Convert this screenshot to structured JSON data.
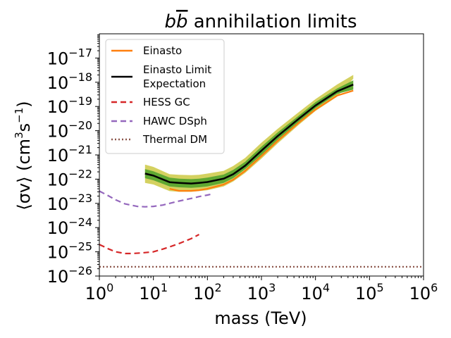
{
  "chart_data": {
    "type": "line",
    "title_main": "b",
    "title_bar": "b",
    "title_rest": " annihilation limits",
    "xlabel": "mass (TeV)",
    "ylabel_parts": {
      "left": "⟨σv⟩ (cm",
      "sup1": "3",
      "mid": "s",
      "sup2": "−1",
      "right": ")"
    },
    "x_scale": "log",
    "y_scale": "log",
    "xlim": [
      1,
      1000000
    ],
    "ylim": [
      1e-26,
      1e-16
    ],
    "x_ticks": [
      {
        "value": 1,
        "mant": "10",
        "exp": "0"
      },
      {
        "value": 10,
        "mant": "10",
        "exp": "1"
      },
      {
        "value": 100,
        "mant": "10",
        "exp": "2"
      },
      {
        "value": 1000,
        "mant": "10",
        "exp": "3"
      },
      {
        "value": 10000,
        "mant": "10",
        "exp": "4"
      },
      {
        "value": 100000,
        "mant": "10",
        "exp": "5"
      },
      {
        "value": 1000000,
        "mant": "10",
        "exp": "6"
      }
    ],
    "y_ticks": [
      {
        "value": 1e-26,
        "mant": "10",
        "exp": "−26"
      },
      {
        "value": 1e-25,
        "mant": "10",
        "exp": "−25"
      },
      {
        "value": 1e-24,
        "mant": "10",
        "exp": "−24"
      },
      {
        "value": 1e-23,
        "mant": "10",
        "exp": "−23"
      },
      {
        "value": 1e-22,
        "mant": "10",
        "exp": "−22"
      },
      {
        "value": 1e-21,
        "mant": "10",
        "exp": "−21"
      },
      {
        "value": 1e-20,
        "mant": "10",
        "exp": "−20"
      },
      {
        "value": 1e-19,
        "mant": "10",
        "exp": "−19"
      },
      {
        "value": 1e-18,
        "mant": "10",
        "exp": "−18"
      },
      {
        "value": 1e-17,
        "mant": "10",
        "exp": "−17"
      }
    ],
    "legend_position": "top-left",
    "bands": [
      {
        "name": "2-sigma",
        "color": "#d4d160",
        "x": [
          7,
          10,
          20,
          30,
          50,
          70,
          100,
          200,
          300,
          500,
          1000,
          2000,
          5000,
          10000,
          25000,
          50000
        ],
        "lower": [
          7e-23,
          6e-23,
          3.2e-23,
          3e-23,
          3e-23,
          3.2e-23,
          3.5e-23,
          5e-23,
          8e-23,
          1.8e-22,
          7e-22,
          3e-21,
          1.8e-20,
          6.5e-20,
          2.5e-19,
          1.4e-18
        ],
        "upper": [
          4e-22,
          3.2e-22,
          1.6e-22,
          1.5e-22,
          1.45e-22,
          1.5e-22,
          1.7e-22,
          2.2e-22,
          3.5e-22,
          7.5e-22,
          3.2e-21,
          1.2e-20,
          6e-20,
          2e-19,
          8e-19,
          2e-18
        ]
      },
      {
        "name": "1-sigma",
        "color": "#5fa832",
        "x": [
          7,
          10,
          20,
          30,
          50,
          70,
          100,
          200,
          300,
          500,
          1000,
          2000,
          5000,
          10000,
          25000,
          50000
        ],
        "lower": [
          1.1e-22,
          9e-23,
          5e-23,
          4.6e-23,
          4.4e-23,
          4.6e-23,
          5e-23,
          7e-23,
          1.1e-22,
          2.6e-22,
          1e-21,
          4.3e-21,
          2.4e-20,
          8.5e-20,
          3.3e-19,
          5e-19
        ],
        "upper": [
          2.6e-22,
          2.1e-22,
          1.15e-22,
          1.05e-22,
          1e-22,
          1.05e-22,
          1.15e-22,
          1.55e-22,
          2.4e-22,
          5.2e-22,
          2.2e-21,
          8.5e-21,
          4.3e-20,
          1.5e-19,
          5.5e-19,
          1.2e-18
        ]
      }
    ],
    "series": [
      {
        "name": "Einasto",
        "color": "#ff7f0e",
        "dash": "",
        "x": [
          20,
          30,
          50,
          70,
          100,
          200,
          300,
          500,
          1000,
          2000,
          5000,
          10000,
          25000,
          50000
        ],
        "y": [
          4e-23,
          3.3e-23,
          3.3e-23,
          3.5e-23,
          4e-23,
          6e-23,
          9.5e-23,
          2.2e-22,
          9e-22,
          3.8e-21,
          2.2e-20,
          7.5e-20,
          2.8e-19,
          4.5e-19
        ]
      },
      {
        "name": "Einasto Limit Expectation",
        "name_lines": [
          "Einasto Limit",
          "Expectation"
        ],
        "color": "#000000",
        "dash": "",
        "x": [
          7,
          10,
          20,
          30,
          50,
          70,
          100,
          200,
          300,
          500,
          1000,
          2000,
          5000,
          10000,
          25000,
          50000
        ],
        "y": [
          1.7e-22,
          1.4e-22,
          7.5e-23,
          7e-23,
          6.6e-23,
          7e-23,
          7.6e-23,
          1.05e-22,
          1.6e-22,
          3.6e-22,
          1.5e-21,
          6e-21,
          3.2e-20,
          1.1e-19,
          4.2e-19,
          8e-19
        ]
      },
      {
        "name": "HESS GC",
        "color": "#d62728",
        "dash": "8,5",
        "x": [
          1,
          1.5,
          2,
          3,
          4,
          6,
          10,
          15,
          20,
          30,
          50,
          70
        ],
        "y": [
          2e-25,
          1.3e-25,
          1e-25,
          8.5e-26,
          8.5e-26,
          9e-26,
          1e-25,
          1.3e-25,
          1.6e-25,
          2.2e-25,
          3.5e-25,
          5.2e-25
        ]
      },
      {
        "name": "HAWC DSph",
        "color": "#9467bd",
        "dash": "8,5",
        "x": [
          1,
          1.5,
          2,
          3,
          5,
          7,
          10,
          15,
          20,
          30,
          50,
          70,
          100,
          120
        ],
        "y": [
          3.2e-23,
          2e-23,
          1.4e-23,
          9.5e-24,
          7.5e-24,
          7.2e-24,
          7.5e-24,
          8.5e-24,
          1e-23,
          1.25e-23,
          1.6e-23,
          1.9e-23,
          2.2e-23,
          2.4e-23
        ]
      },
      {
        "name": "Thermal DM",
        "color": "#8c564b",
        "dash": "2,3",
        "x": [
          1,
          1000000
        ],
        "y": [
          2.4e-26,
          2.4e-26
        ]
      }
    ]
  }
}
